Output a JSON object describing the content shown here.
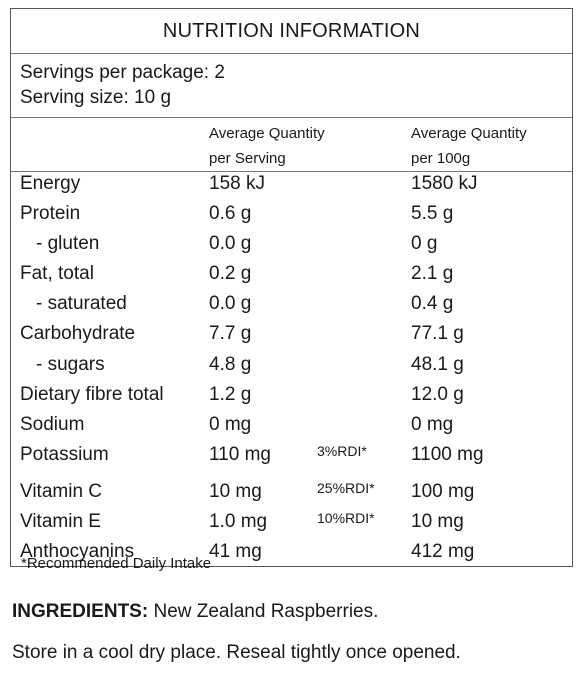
{
  "title": "NUTRITION INFORMATION",
  "servings": {
    "per_package": "Servings per package: 2",
    "size": "Serving size: 10 g"
  },
  "headers": {
    "per_serving_line1": "Average Quantity",
    "per_serving_line2": "per Serving",
    "per_100g_line1": "Average Quantity",
    "per_100g_line2": "per 100g"
  },
  "rows": [
    {
      "name": "Energy",
      "serving": "158 kJ",
      "rdi": "",
      "per100": "1580 kJ"
    },
    {
      "name": "Protein",
      "serving": "0.6 g",
      "rdi": "",
      "per100": "5.5 g"
    },
    {
      "name": "- gluten",
      "serving": "0.0 g",
      "rdi": "",
      "per100": "0 g"
    },
    {
      "name": "Fat, total",
      "serving": "0.2 g",
      "rdi": "",
      "per100": "2.1 g"
    },
    {
      "name": "- saturated",
      "serving": "0.0 g",
      "rdi": "",
      "per100": "0.4 g"
    },
    {
      "name": "Carbohydrate",
      "serving": "7.7 g",
      "rdi": "",
      "per100": "77.1 g"
    },
    {
      "name": "- sugars",
      "serving": "4.8 g",
      "rdi": "",
      "per100": "48.1 g"
    },
    {
      "name": "Dietary fibre total",
      "serving": "1.2 g",
      "rdi": "",
      "per100": "12.0 g"
    },
    {
      "name": "Sodium",
      "serving": "0 mg",
      "rdi": "",
      "per100": "0 mg"
    },
    {
      "name": "Potassium",
      "serving": "110 mg",
      "rdi": "3%RDI*",
      "per100": "1100 mg"
    },
    {
      "name": "Vitamin C",
      "serving": "10 mg",
      "rdi": "25%RDI*",
      "per100": "100 mg"
    },
    {
      "name": "Vitamin E",
      "serving": "1.0 mg",
      "rdi": "10%RDI*",
      "per100": "10 mg"
    },
    {
      "name": "Anthocyanins",
      "serving": "41 mg",
      "rdi": "",
      "per100": "412 mg"
    }
  ],
  "footnote": "*Recommended Daily Intake",
  "ingredients": {
    "label": "INGREDIENTS:",
    "text": " New Zealand Raspberries."
  },
  "storage": "Store in a cool dry place. Reseal tightly once opened."
}
